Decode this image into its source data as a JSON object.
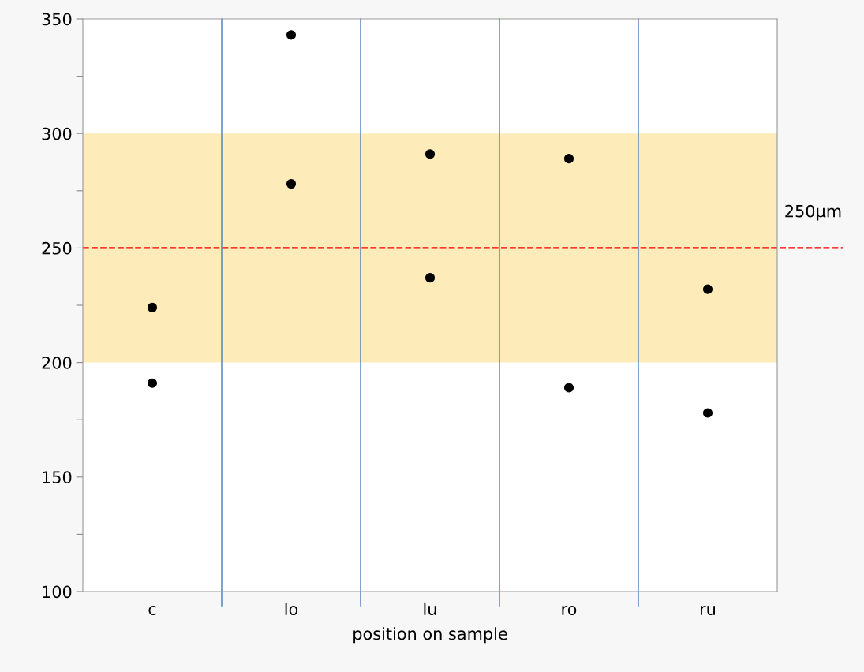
{
  "chart_data": {
    "type": "scatter",
    "xlabel": "position on sample",
    "categories": [
      "c",
      "lo",
      "lu",
      "ro",
      "ru"
    ],
    "series": [
      {
        "color": "#000000",
        "values": [
          224,
          343,
          291,
          289,
          232
        ]
      },
      {
        "color": "#000000",
        "values": [
          191,
          278,
          237,
          189,
          178
        ]
      }
    ],
    "ylim": [
      100,
      350
    ],
    "yticks": [
      100,
      {
        "value": 125,
        "label": null
      },
      150,
      {
        "value": 175,
        "label": null
      },
      200,
      {
        "value": 225,
        "label": null
      },
      250,
      {
        "value": 275,
        "label": null
      },
      300,
      {
        "value": 325,
        "label": null
      },
      350
    ],
    "ref_lines": [
      {
        "axis": "y",
        "value": 250,
        "label": "250µm",
        "color": "#ff0000",
        "line_style": "dashed"
      }
    ],
    "bands": [
      {
        "axis": "y",
        "from": 200,
        "to": 300,
        "color": "#fdebb9"
      }
    ],
    "grid": "x",
    "marker": "circle"
  }
}
